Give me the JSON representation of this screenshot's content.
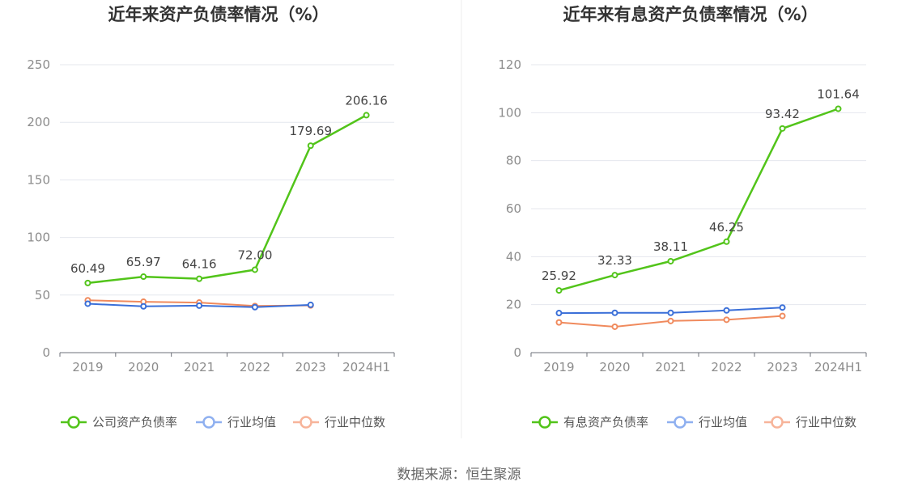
{
  "source_label": "数据来源：恒生聚源",
  "chart_data": [
    {
      "type": "line",
      "title": "近年来资产负债率情况（%）",
      "categories": [
        "2019",
        "2020",
        "2021",
        "2022",
        "2023",
        "2024H1"
      ],
      "ylim": [
        0,
        250
      ],
      "yticks": [
        0,
        50,
        100,
        150,
        200,
        250
      ],
      "ytick_labels": [
        "0",
        "50",
        "100",
        "150",
        "200",
        "250"
      ],
      "grid": true,
      "legend_position": "bottom-center",
      "series": [
        {
          "name": "公司资产负债率",
          "color": "#52c41a",
          "values": [
            60.49,
            65.97,
            64.16,
            72.0,
            179.69,
            206.16
          ],
          "labels": [
            "60.49",
            "65.97",
            "64.16",
            "72.00",
            "179.69",
            "206.16"
          ]
        },
        {
          "name": "行业均值",
          "color": "#3a6fd8",
          "values": [
            42.5,
            40.2,
            40.8,
            39.5,
            41.5,
            null
          ]
        },
        {
          "name": "行业中位数",
          "color": "#f08a5d",
          "values": [
            45.5,
            44.2,
            43.5,
            40.5,
            41.0,
            null
          ]
        }
      ]
    },
    {
      "type": "line",
      "title": "近年来有息资产负债率情况（%）",
      "categories": [
        "2019",
        "2020",
        "2021",
        "2022",
        "2023",
        "2024H1"
      ],
      "ylim": [
        0,
        120
      ],
      "yticks": [
        0,
        20,
        40,
        60,
        80,
        100,
        120
      ],
      "ytick_labels": [
        "0",
        "20",
        "40",
        "60",
        "80",
        "100",
        "120"
      ],
      "grid": true,
      "legend_position": "bottom-center",
      "series": [
        {
          "name": "有息资产负债率",
          "color": "#52c41a",
          "values": [
            25.92,
            32.33,
            38.11,
            46.25,
            93.42,
            101.64
          ],
          "labels": [
            "25.92",
            "32.33",
            "38.11",
            "46.25",
            "93.42",
            "101.64"
          ]
        },
        {
          "name": "行业均值",
          "color": "#3a6fd8",
          "values": [
            16.5,
            16.6,
            16.6,
            17.6,
            18.8,
            null
          ]
        },
        {
          "name": "行业中位数",
          "color": "#f08a5d",
          "values": [
            12.6,
            10.8,
            13.2,
            13.7,
            15.3,
            null
          ]
        }
      ]
    }
  ]
}
